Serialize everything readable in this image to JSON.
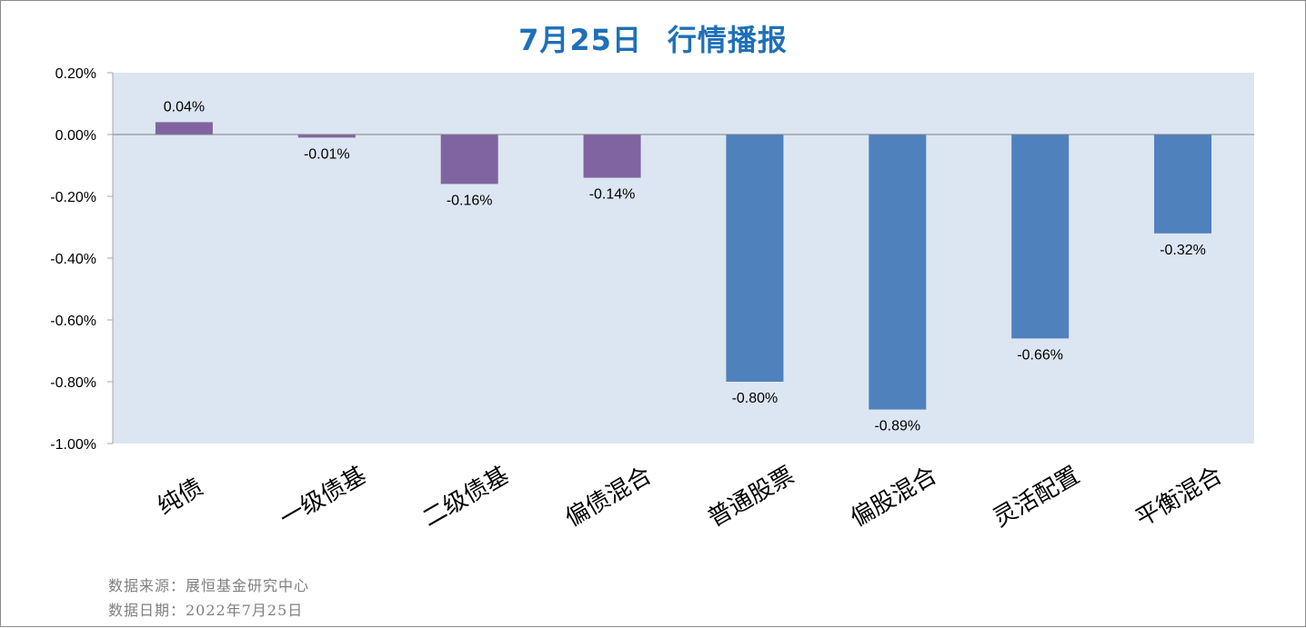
{
  "title": {
    "date": "7月25日",
    "text": "行情播报"
  },
  "footer": {
    "source": "数据来源：展恒基金研究中心",
    "date": "数据日期：2022年7月25日"
  },
  "colors": {
    "title": "#1f70b8",
    "plot_background": "#dce6f2",
    "bond_series": "#8064a2",
    "equity_series": "#4f81bd"
  },
  "chart_data": {
    "type": "bar",
    "categories": [
      "纯债",
      "一级债基",
      "二级债基",
      "偏债混合",
      "普通股票",
      "偏股混合",
      "灵活配置",
      "平衡混合"
    ],
    "values": [
      0.04,
      -0.01,
      -0.16,
      -0.14,
      -0.8,
      -0.89,
      -0.66,
      -0.32
    ],
    "data_labels": [
      "0.04%",
      "-0.01%",
      "-0.16%",
      "-0.14%",
      "-0.80%",
      "-0.89%",
      "-0.66%",
      "-0.32%"
    ],
    "bar_colors": [
      "#8064a2",
      "#8064a2",
      "#8064a2",
      "#8064a2",
      "#4f81bd",
      "#4f81bd",
      "#4f81bd",
      "#4f81bd"
    ],
    "ylim": [
      -1.0,
      0.2
    ],
    "yticks": [
      0.2,
      0.0,
      -0.2,
      -0.4,
      -0.6,
      -0.8,
      -1.0
    ],
    "ytick_labels": [
      "0.20%",
      "0.00%",
      "-0.20%",
      "-0.40%",
      "-0.60%",
      "-0.80%",
      "-1.00%"
    ],
    "grid": false,
    "legend": "none"
  }
}
